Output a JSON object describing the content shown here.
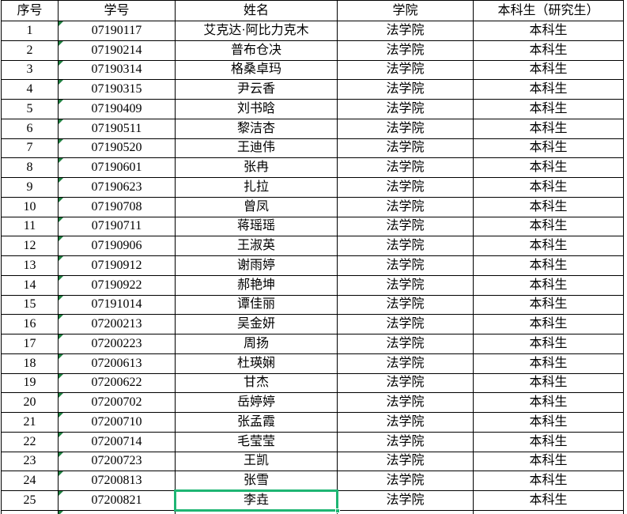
{
  "table": {
    "headers": {
      "index": "序号",
      "student_id": "学号",
      "name": "姓名",
      "college": "学院",
      "degree": "本科生（研究生）"
    },
    "rows": [
      {
        "index": "1",
        "student_id": "07190117",
        "name": "艾克达·阿比力克木",
        "college": "法学院",
        "degree": "本科生"
      },
      {
        "index": "2",
        "student_id": "07190214",
        "name": "普布仓决",
        "college": "法学院",
        "degree": "本科生"
      },
      {
        "index": "3",
        "student_id": "07190314",
        "name": "格桑卓玛",
        "college": "法学院",
        "degree": "本科生"
      },
      {
        "index": "4",
        "student_id": "07190315",
        "name": "尹云香",
        "college": "法学院",
        "degree": "本科生"
      },
      {
        "index": "5",
        "student_id": "07190409",
        "name": "刘书晗",
        "college": "法学院",
        "degree": "本科生"
      },
      {
        "index": "6",
        "student_id": "07190511",
        "name": "黎洁杏",
        "college": "法学院",
        "degree": "本科生"
      },
      {
        "index": "7",
        "student_id": "07190520",
        "name": "王迪伟",
        "college": "法学院",
        "degree": "本科生"
      },
      {
        "index": "8",
        "student_id": "07190601",
        "name": "张冉",
        "college": "法学院",
        "degree": "本科生"
      },
      {
        "index": "9",
        "student_id": "07190623",
        "name": "扎拉",
        "college": "法学院",
        "degree": "本科生"
      },
      {
        "index": "10",
        "student_id": "07190708",
        "name": "曾凤",
        "college": "法学院",
        "degree": "本科生"
      },
      {
        "index": "11",
        "student_id": "07190711",
        "name": "蒋瑶瑶",
        "college": "法学院",
        "degree": "本科生"
      },
      {
        "index": "12",
        "student_id": "07190906",
        "name": "王淑英",
        "college": "法学院",
        "degree": "本科生"
      },
      {
        "index": "13",
        "student_id": "07190912",
        "name": "谢雨婷",
        "college": "法学院",
        "degree": "本科生"
      },
      {
        "index": "14",
        "student_id": "07190922",
        "name": "郝艳坤",
        "college": "法学院",
        "degree": "本科生"
      },
      {
        "index": "15",
        "student_id": "07191014",
        "name": "谭佳丽",
        "college": "法学院",
        "degree": "本科生"
      },
      {
        "index": "16",
        "student_id": "07200213",
        "name": "吴金妍",
        "college": "法学院",
        "degree": "本科生"
      },
      {
        "index": "17",
        "student_id": "07200223",
        "name": "周扬",
        "college": "法学院",
        "degree": "本科生"
      },
      {
        "index": "18",
        "student_id": "07200613",
        "name": "杜瑛娴",
        "college": "法学院",
        "degree": "本科生"
      },
      {
        "index": "19",
        "student_id": "07200622",
        "name": "甘杰",
        "college": "法学院",
        "degree": "本科生"
      },
      {
        "index": "20",
        "student_id": "07200702",
        "name": "岳婷婷",
        "college": "法学院",
        "degree": "本科生"
      },
      {
        "index": "21",
        "student_id": "07200710",
        "name": "张孟霞",
        "college": "法学院",
        "degree": "本科生"
      },
      {
        "index": "22",
        "student_id": "07200714",
        "name": "毛莹莹",
        "college": "法学院",
        "degree": "本科生"
      },
      {
        "index": "23",
        "student_id": "07200723",
        "name": "王凯",
        "college": "法学院",
        "degree": "本科生"
      },
      {
        "index": "24",
        "student_id": "07200813",
        "name": "张雪",
        "college": "法学院",
        "degree": "本科生"
      },
      {
        "index": "25",
        "student_id": "07200821",
        "name": "李垚",
        "college": "法学院",
        "degree": "本科生"
      }
    ]
  },
  "selection": {
    "row_number": 25,
    "column": "name",
    "value": "李垚"
  },
  "indicators": {
    "student_id_text_format": true
  },
  "colors": {
    "grid_border": "#000000",
    "selection_green": "#1eb573",
    "indicator_green": "#1f8040",
    "background": "#ffffff",
    "text": "#000000"
  }
}
